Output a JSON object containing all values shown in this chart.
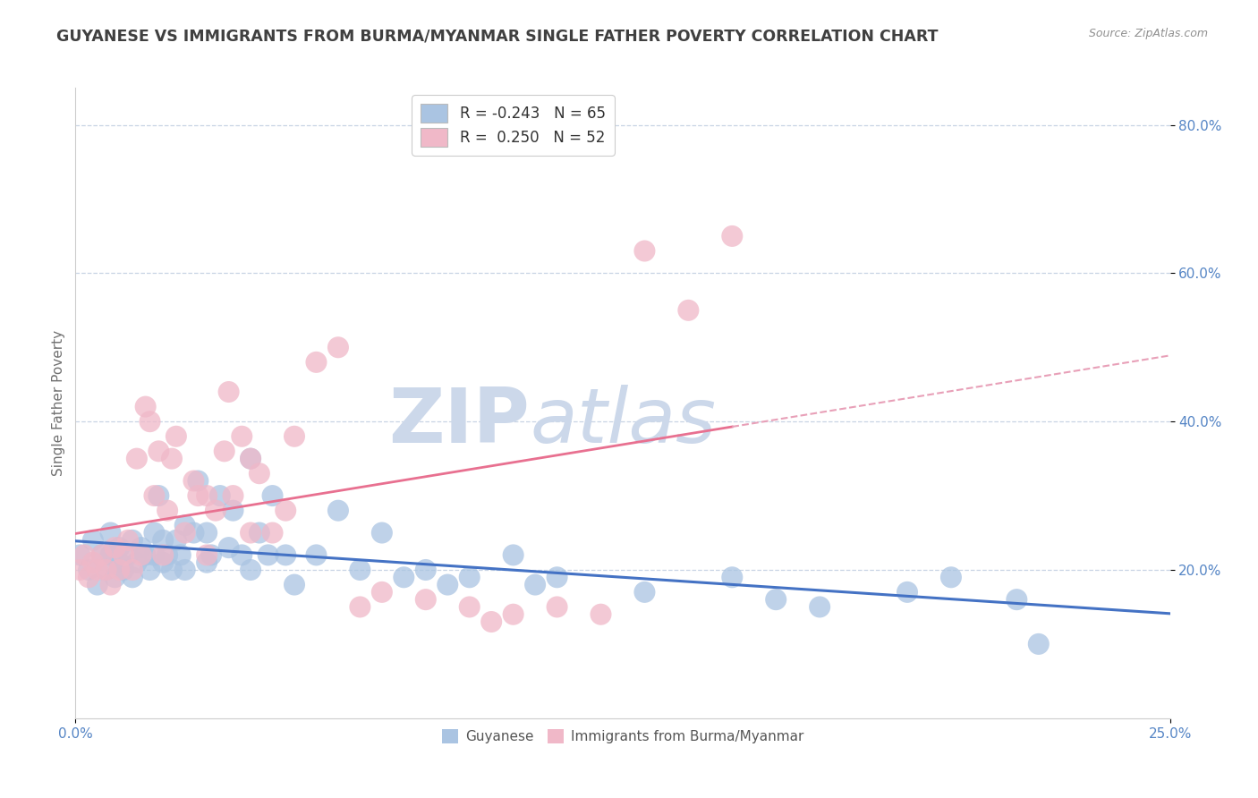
{
  "title": "GUYANESE VS IMMIGRANTS FROM BURMA/MYANMAR SINGLE FATHER POVERTY CORRELATION CHART",
  "source": "Source: ZipAtlas.com",
  "ylabel": "Single Father Poverty",
  "xlim": [
    0.0,
    0.25
  ],
  "ylim": [
    0.0,
    0.85
  ],
  "xtick_labels": [
    "0.0%",
    "25.0%"
  ],
  "ytick_labels": [
    "20.0%",
    "40.0%",
    "60.0%",
    "80.0%"
  ],
  "ytick_values": [
    0.2,
    0.4,
    0.6,
    0.8
  ],
  "xtick_values": [
    0.0,
    0.25
  ],
  "legend_labels": [
    "Guyanese",
    "Immigrants from Burma/Myanmar"
  ],
  "R_guyanese": -0.243,
  "N_guyanese": 65,
  "R_burma": 0.25,
  "N_burma": 52,
  "blue_color": "#aac4e2",
  "pink_color": "#f0b8c8",
  "blue_line_color": "#4472c4",
  "pink_line_color": "#e87090",
  "pink_dash_color": "#e8a0b8",
  "watermark_color": "#ccd8ea",
  "grid_color": "#c8d4e4",
  "title_color": "#404040",
  "axis_label_color": "#707070",
  "tick_color": "#5585c5",
  "background_color": "#ffffff",
  "guyanese_x": [
    0.001,
    0.003,
    0.004,
    0.005,
    0.006,
    0.007,
    0.008,
    0.008,
    0.009,
    0.01,
    0.01,
    0.011,
    0.012,
    0.013,
    0.013,
    0.014,
    0.015,
    0.016,
    0.017,
    0.018,
    0.018,
    0.019,
    0.02,
    0.02,
    0.021,
    0.022,
    0.023,
    0.024,
    0.025,
    0.025,
    0.027,
    0.028,
    0.03,
    0.03,
    0.031,
    0.033,
    0.035,
    0.036,
    0.038,
    0.04,
    0.04,
    0.042,
    0.044,
    0.045,
    0.048,
    0.05,
    0.055,
    0.06,
    0.065,
    0.07,
    0.075,
    0.08,
    0.085,
    0.09,
    0.1,
    0.105,
    0.11,
    0.13,
    0.15,
    0.16,
    0.17,
    0.19,
    0.2,
    0.215,
    0.22
  ],
  "guyanese_y": [
    0.22,
    0.2,
    0.24,
    0.18,
    0.22,
    0.2,
    0.22,
    0.25,
    0.19,
    0.21,
    0.23,
    0.2,
    0.22,
    0.19,
    0.24,
    0.21,
    0.23,
    0.22,
    0.2,
    0.25,
    0.22,
    0.3,
    0.21,
    0.24,
    0.22,
    0.2,
    0.24,
    0.22,
    0.2,
    0.26,
    0.25,
    0.32,
    0.21,
    0.25,
    0.22,
    0.3,
    0.23,
    0.28,
    0.22,
    0.2,
    0.35,
    0.25,
    0.22,
    0.3,
    0.22,
    0.18,
    0.22,
    0.28,
    0.2,
    0.25,
    0.19,
    0.2,
    0.18,
    0.19,
    0.22,
    0.18,
    0.19,
    0.17,
    0.19,
    0.16,
    0.15,
    0.17,
    0.19,
    0.16,
    0.1
  ],
  "burma_x": [
    0.001,
    0.002,
    0.003,
    0.004,
    0.005,
    0.006,
    0.007,
    0.008,
    0.009,
    0.01,
    0.011,
    0.012,
    0.013,
    0.014,
    0.015,
    0.016,
    0.017,
    0.018,
    0.019,
    0.02,
    0.021,
    0.022,
    0.023,
    0.025,
    0.027,
    0.028,
    0.03,
    0.03,
    0.032,
    0.034,
    0.035,
    0.036,
    0.038,
    0.04,
    0.04,
    0.042,
    0.045,
    0.048,
    0.05,
    0.055,
    0.06,
    0.065,
    0.07,
    0.08,
    0.09,
    0.095,
    0.1,
    0.11,
    0.12,
    0.13,
    0.14,
    0.15
  ],
  "burma_y": [
    0.2,
    0.22,
    0.19,
    0.21,
    0.2,
    0.22,
    0.2,
    0.18,
    0.23,
    0.2,
    0.22,
    0.24,
    0.2,
    0.35,
    0.22,
    0.42,
    0.4,
    0.3,
    0.36,
    0.22,
    0.28,
    0.35,
    0.38,
    0.25,
    0.32,
    0.3,
    0.22,
    0.3,
    0.28,
    0.36,
    0.44,
    0.3,
    0.38,
    0.25,
    0.35,
    0.33,
    0.25,
    0.28,
    0.38,
    0.48,
    0.5,
    0.15,
    0.17,
    0.16,
    0.15,
    0.13,
    0.14,
    0.15,
    0.14,
    0.63,
    0.55,
    0.65
  ]
}
